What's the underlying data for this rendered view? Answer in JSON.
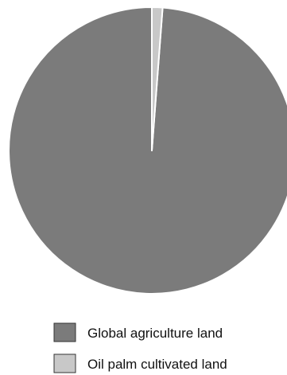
{
  "chart_data": {
    "type": "pie",
    "title": "",
    "slices": [
      {
        "label": "Global agriculture land",
        "value": 98.8,
        "color": "#7b7b7b"
      },
      {
        "label": "Oil palm cultivated land",
        "value": 1.2,
        "color": "#c8c8c8"
      }
    ],
    "start_angle_deg": 0,
    "direction": "counterclockwise",
    "slice_separator_color": "#ffffff",
    "legend_position": "bottom",
    "legend": [
      {
        "label": "Global agriculture land",
        "color": "#7b7b7b"
      },
      {
        "label": "Oil palm cultivated land",
        "color": "#c8c8c8"
      }
    ]
  }
}
